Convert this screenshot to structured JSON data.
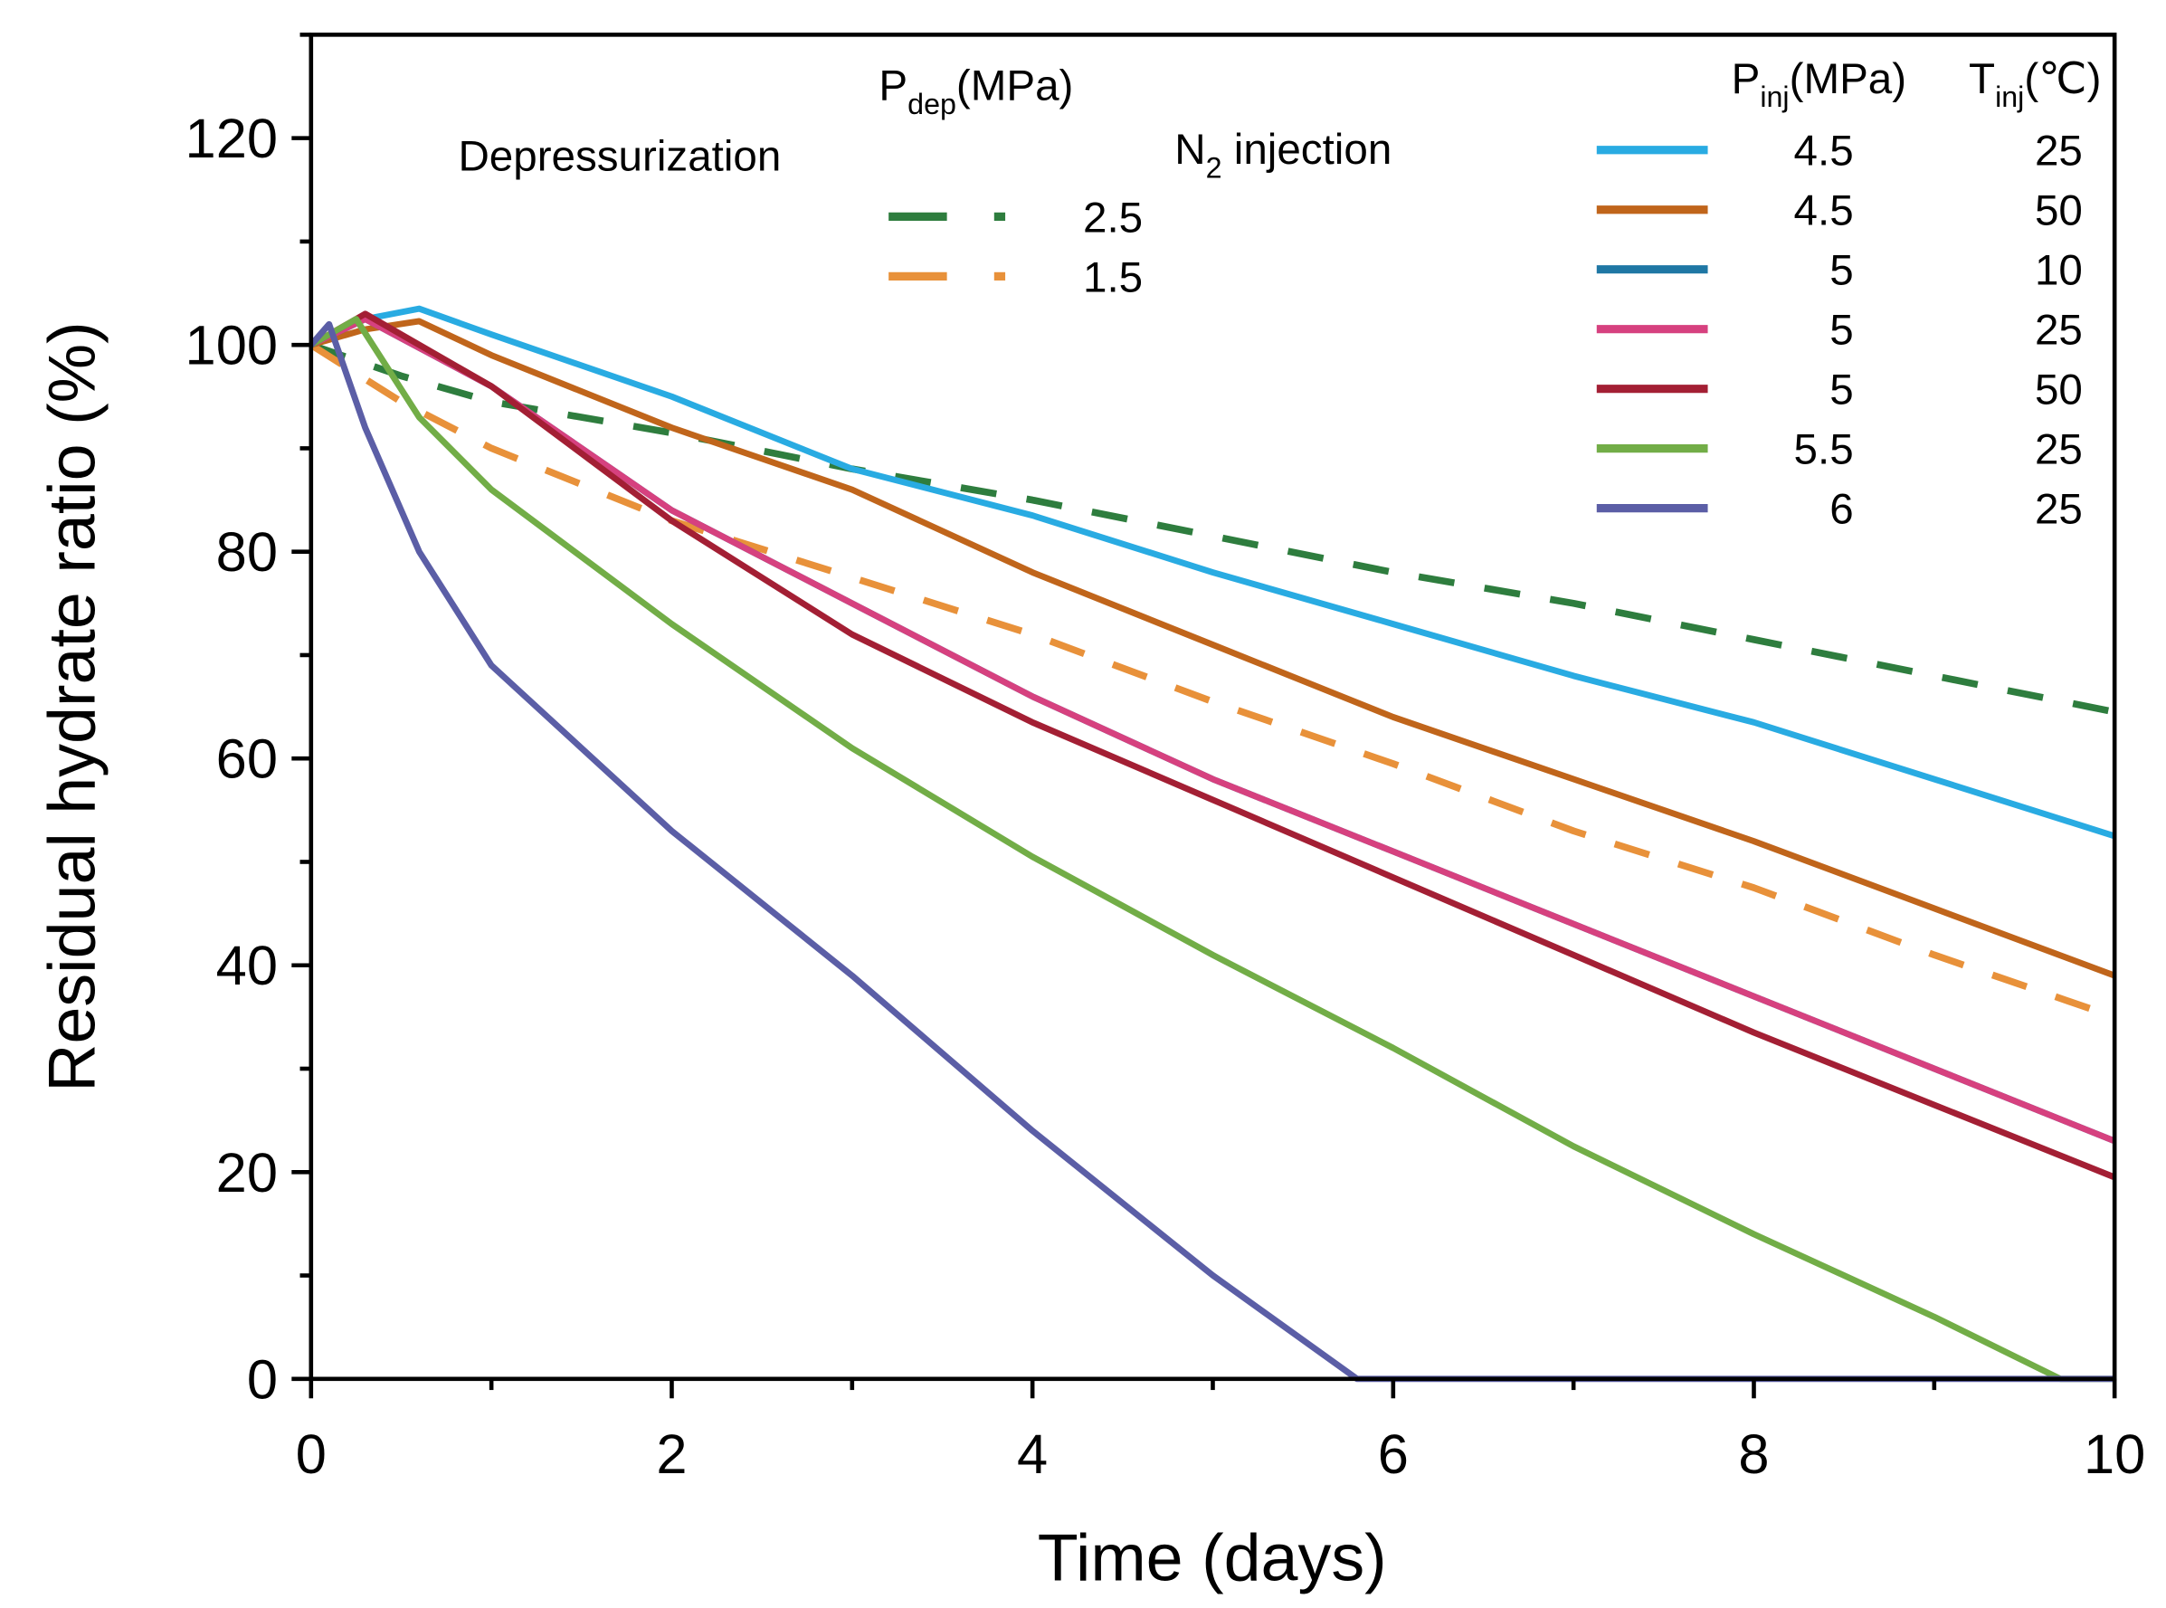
{
  "chart_data": {
    "type": "line",
    "title": "",
    "xlabel": "Time (days)",
    "ylabel": "Residual hydrate ratio (%)",
    "xlim": [
      0,
      10
    ],
    "ylim": [
      0,
      130
    ],
    "xticks": [
      0,
      2,
      4,
      6,
      8,
      10
    ],
    "yticks": [
      0,
      20,
      40,
      60,
      80,
      100,
      120
    ],
    "grid": false,
    "legend": {
      "left_group": {
        "title_main": "P",
        "title_sub": "dep",
        "title_unit": "(MPa)",
        "label": "Depressurization",
        "placement": "top-center"
      },
      "right_group": {
        "label_main": "N",
        "label_sub": "2",
        "label_rest": " injection",
        "col1_main": "P",
        "col1_sub": "inj",
        "col1_unit": "(MPa)",
        "col2_main": "T",
        "col2_sub": "inj",
        "col2_unit": "(℃)",
        "placement": "top-right"
      }
    },
    "series": [
      {
        "name": "Depressurization 2.5 MPa",
        "group": "dep",
        "p": "2.5",
        "style": "dashed",
        "color": "#2e7d3e",
        "x": [
          0,
          0.5,
          1,
          2,
          3,
          4,
          5,
          6,
          7,
          8,
          9,
          10
        ],
        "y": [
          100,
          97,
          94.5,
          91.5,
          88,
          85,
          81.5,
          78,
          75,
          71.5,
          68,
          64.5
        ]
      },
      {
        "name": "Depressurization 1.5 MPa",
        "group": "dep",
        "p": "1.5",
        "style": "dashed",
        "color": "#e8913a",
        "x": [
          0,
          0.5,
          1,
          2,
          3,
          4,
          5,
          6,
          7,
          8,
          9,
          10
        ],
        "y": [
          100,
          94.5,
          90,
          83,
          77.5,
          72,
          65.5,
          59.5,
          53,
          47.5,
          41,
          35
        ]
      },
      {
        "name": "N2 4.5 MPa 25C",
        "group": "inj",
        "p": "4.5",
        "t": "25",
        "style": "solid",
        "color": "#29abe2",
        "x": [
          0,
          0.3,
          0.6,
          1,
          2,
          3,
          4,
          5,
          6,
          7,
          8,
          9,
          10
        ],
        "y": [
          100,
          102.5,
          103.5,
          101,
          95,
          88,
          83.5,
          78,
          73,
          68,
          63.5,
          58,
          52.5
        ]
      },
      {
        "name": "N2 4.5 MPa 50C",
        "group": "inj",
        "p": "4.5",
        "t": "50",
        "style": "solid",
        "color": "#c0651b",
        "x": [
          0,
          0.3,
          0.6,
          1,
          2,
          3,
          4,
          5,
          6,
          7,
          8,
          9,
          10
        ],
        "y": [
          100,
          101.5,
          102.3,
          99,
          92,
          86,
          78,
          71,
          64,
          58,
          52,
          45.5,
          39
        ]
      },
      {
        "name": "N2 5 MPa 10C",
        "group": "inj",
        "p": "5",
        "t": "10",
        "style": "solid",
        "color": "#1f77a4",
        "x": [
          0,
          0.3,
          1,
          2,
          3,
          4,
          5,
          6,
          7,
          8,
          9,
          10
        ],
        "y": [
          100,
          102.5,
          96,
          84,
          75,
          66,
          58,
          51,
          44,
          37,
          30,
          23
        ]
      },
      {
        "name": "N2 5 MPa 25C",
        "group": "inj",
        "p": "5",
        "t": "25",
        "style": "solid",
        "color": "#d6417f",
        "x": [
          0,
          0.3,
          1,
          2,
          3,
          4,
          5,
          6,
          7,
          8,
          9,
          10
        ],
        "y": [
          100,
          102.5,
          96,
          84,
          75,
          66,
          58,
          51,
          44,
          37,
          30,
          23
        ]
      },
      {
        "name": "N2 5 MPa 50C",
        "group": "inj",
        "p": "5",
        "t": "50",
        "style": "solid",
        "color": "#a31f34",
        "x": [
          0,
          0.3,
          1,
          2,
          3,
          4,
          5,
          6,
          7,
          8,
          9,
          10
        ],
        "y": [
          100,
          103,
          96,
          83,
          72,
          63.5,
          56,
          48.5,
          41,
          33.5,
          26.5,
          19.5
        ]
      },
      {
        "name": "N2 5.5 MPa 25C",
        "group": "inj",
        "p": "5.5",
        "t": "25",
        "style": "solid",
        "color": "#72ad47",
        "x": [
          0,
          0.25,
          0.6,
          1,
          2,
          3,
          4,
          5,
          6,
          7,
          8,
          9,
          9.7,
          10
        ],
        "y": [
          100,
          102.5,
          93,
          86,
          73,
          61,
          50.5,
          41,
          32,
          22.5,
          14,
          6,
          0,
          0
        ]
      },
      {
        "name": "N2 6 MPa 25C",
        "group": "inj",
        "p": "6",
        "t": "25",
        "style": "solid",
        "color": "#5b5ea6",
        "x": [
          0,
          0.1,
          0.3,
          0.6,
          1,
          2,
          3,
          4,
          5,
          5.8,
          10
        ],
        "y": [
          100,
          102,
          92,
          80,
          69,
          53,
          39,
          24,
          10,
          0,
          0
        ]
      }
    ]
  }
}
